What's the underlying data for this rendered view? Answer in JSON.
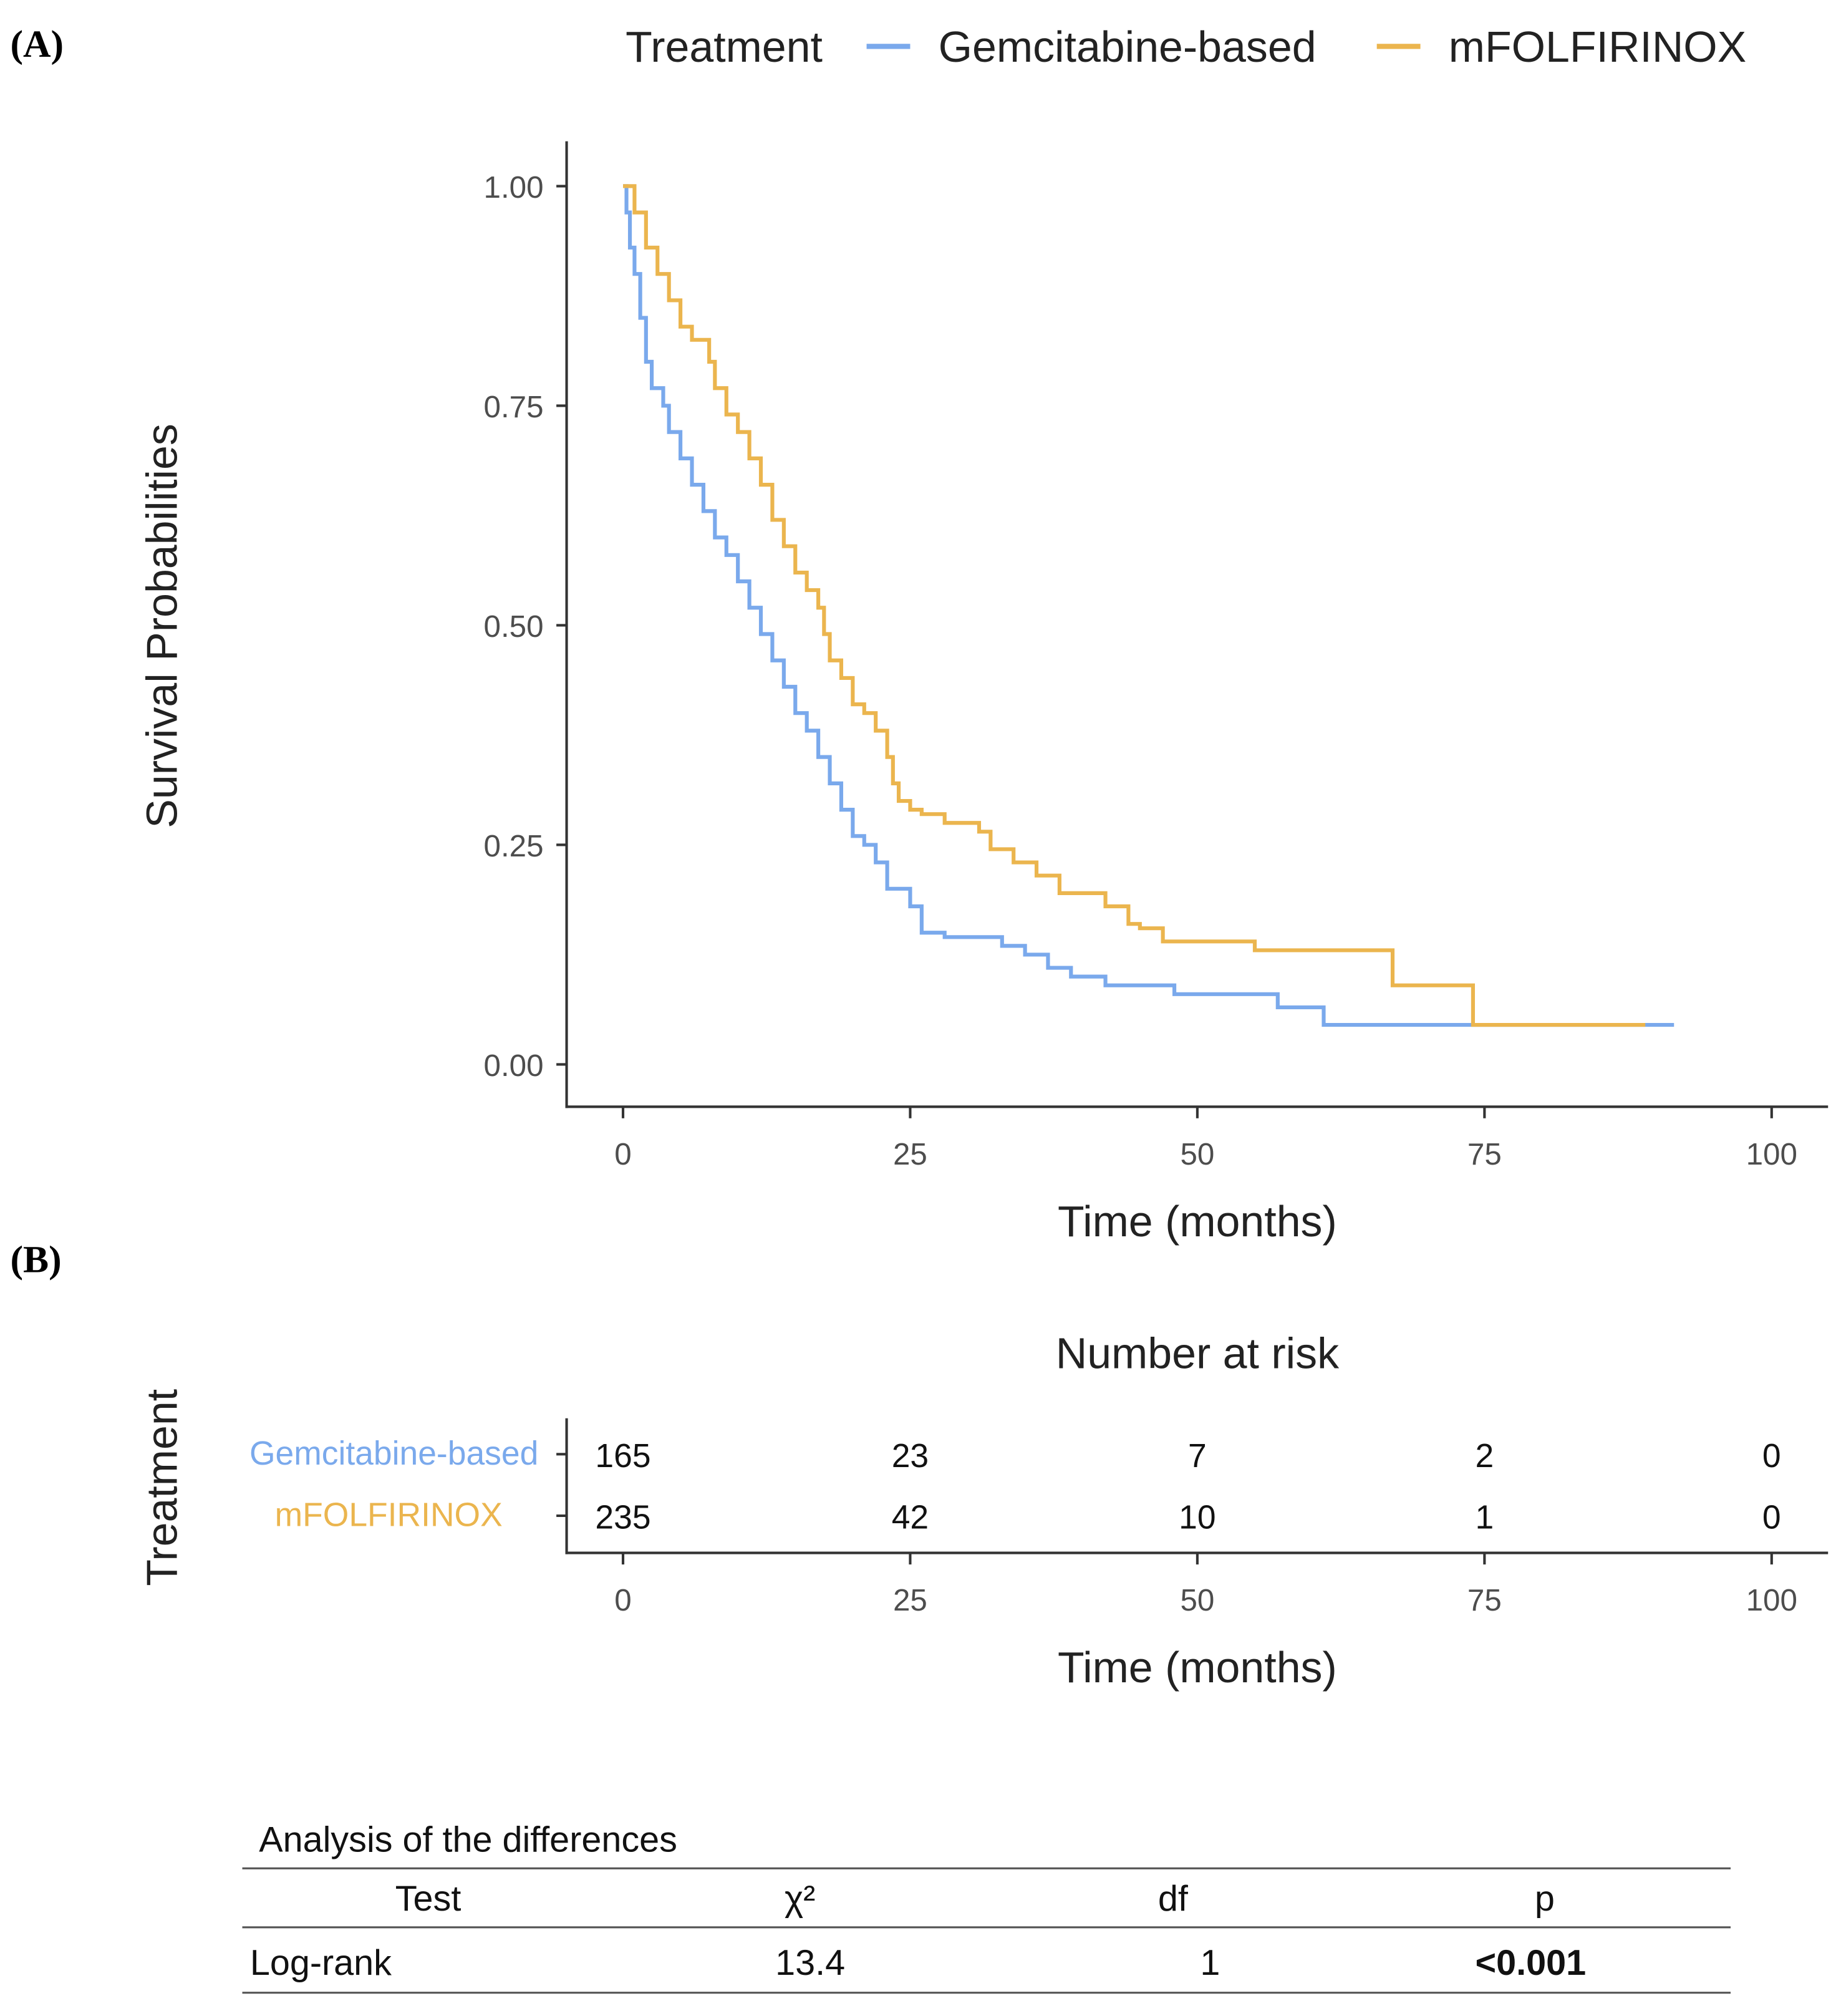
{
  "panel_labels": {
    "a": "(A)",
    "b": "(B)"
  },
  "colors": {
    "gemcitabine": "#7aa9ec",
    "mfolfirinox": "#ebb54e",
    "axis": "#333333"
  },
  "chart_data": {
    "type": "line",
    "subtype": "kaplan-meier step",
    "legend": {
      "title": "Treatment",
      "placement": "top",
      "entries": [
        "Gemcitabine-based",
        "mFOLFIRINOX"
      ]
    },
    "xlabel": "Time (months)",
    "ylabel": "Survival Probabilities",
    "xlim": [
      0,
      100
    ],
    "ylim": [
      0,
      1
    ],
    "xticks": [
      "0",
      "25",
      "50",
      "75",
      "100"
    ],
    "yticks": [
      "0.00",
      "0.25",
      "0.50",
      "0.75",
      "1.00"
    ],
    "grid": false,
    "series": [
      {
        "name": "Gemcitabine-based",
        "color": "#7aa9ec",
        "points": [
          [
            0,
            1
          ],
          [
            0.3,
            0.97
          ],
          [
            0.6,
            0.93
          ],
          [
            1,
            0.9
          ],
          [
            1.5,
            0.85
          ],
          [
            2,
            0.8
          ],
          [
            2.5,
            0.77
          ],
          [
            3.5,
            0.75
          ],
          [
            4,
            0.72
          ],
          [
            5,
            0.69
          ],
          [
            6,
            0.66
          ],
          [
            7,
            0.63
          ],
          [
            8,
            0.6
          ],
          [
            9,
            0.58
          ],
          [
            10,
            0.55
          ],
          [
            11,
            0.52
          ],
          [
            12,
            0.49
          ],
          [
            13,
            0.46
          ],
          [
            14,
            0.43
          ],
          [
            15,
            0.4
          ],
          [
            16,
            0.38
          ],
          [
            17,
            0.35
          ],
          [
            18,
            0.32
          ],
          [
            19,
            0.29
          ],
          [
            20,
            0.26
          ],
          [
            21,
            0.25
          ],
          [
            22,
            0.23
          ],
          [
            23,
            0.2
          ],
          [
            25,
            0.18
          ],
          [
            26,
            0.15
          ],
          [
            28,
            0.145
          ],
          [
            33,
            0.135
          ],
          [
            35,
            0.125
          ],
          [
            37,
            0.11
          ],
          [
            39,
            0.1
          ],
          [
            42,
            0.09
          ],
          [
            48,
            0.08
          ],
          [
            57,
            0.065
          ],
          [
            61,
            0.045
          ],
          [
            91.5,
            0.045
          ]
        ]
      },
      {
        "name": "mFOLFIRINOX",
        "color": "#ebb54e",
        "points": [
          [
            0,
            1
          ],
          [
            1,
            0.97
          ],
          [
            2,
            0.93
          ],
          [
            3,
            0.9
          ],
          [
            4,
            0.87
          ],
          [
            5,
            0.84
          ],
          [
            6,
            0.825
          ],
          [
            7.5,
            0.8
          ],
          [
            8,
            0.77
          ],
          [
            9,
            0.74
          ],
          [
            10,
            0.72
          ],
          [
            11,
            0.69
          ],
          [
            12,
            0.66
          ],
          [
            13,
            0.62
          ],
          [
            14,
            0.59
          ],
          [
            15,
            0.56
          ],
          [
            16,
            0.54
          ],
          [
            17,
            0.52
          ],
          [
            17.5,
            0.49
          ],
          [
            18,
            0.46
          ],
          [
            19,
            0.44
          ],
          [
            20,
            0.41
          ],
          [
            21,
            0.4
          ],
          [
            22,
            0.38
          ],
          [
            23,
            0.35
          ],
          [
            23.5,
            0.32
          ],
          [
            24,
            0.3
          ],
          [
            25,
            0.29
          ],
          [
            26,
            0.285
          ],
          [
            28,
            0.275
          ],
          [
            31,
            0.265
          ],
          [
            32,
            0.245
          ],
          [
            34,
            0.23
          ],
          [
            36,
            0.215
          ],
          [
            38,
            0.195
          ],
          [
            42,
            0.18
          ],
          [
            44,
            0.16
          ],
          [
            45,
            0.155
          ],
          [
            47,
            0.14
          ],
          [
            55,
            0.13
          ],
          [
            67,
            0.09
          ],
          [
            74,
            0.045
          ],
          [
            89,
            0.045
          ]
        ]
      }
    ]
  },
  "risk_table": {
    "title": "Number at risk",
    "ylabel": "Treatment",
    "xlabel": "Time (months)",
    "times": [
      "0",
      "25",
      "50",
      "75",
      "100"
    ],
    "rows": [
      {
        "label": "Gemcitabine-based",
        "values": [
          "165",
          "23",
          "7",
          "2",
          "0"
        ]
      },
      {
        "label": "mFOLFIRINOX",
        "values": [
          "235",
          "42",
          "10",
          "1",
          "0"
        ]
      }
    ]
  },
  "analysis": {
    "title": "Analysis of the differences",
    "headers": [
      "Test",
      "χ²",
      "df",
      "p"
    ],
    "row": [
      "Log-rank",
      "13.4",
      "1",
      "<0.001"
    ]
  }
}
